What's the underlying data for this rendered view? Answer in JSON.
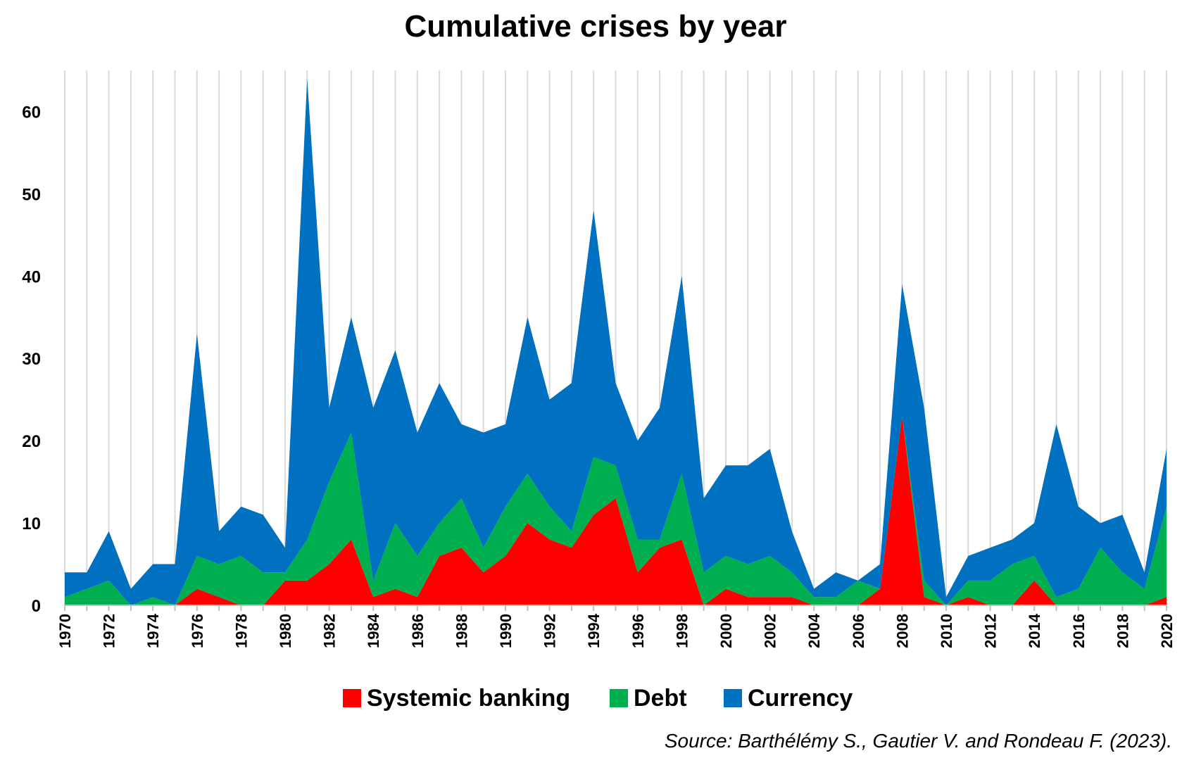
{
  "chart_data": {
    "type": "area",
    "stacked": true,
    "title": "Cumulative crises by year",
    "source": "Source: Barthélémy S., Gautier V. and Rondeau F. (2023).",
    "x": [
      1970,
      1971,
      1972,
      1973,
      1974,
      1975,
      1976,
      1977,
      1978,
      1979,
      1980,
      1981,
      1982,
      1983,
      1984,
      1985,
      1986,
      1987,
      1988,
      1989,
      1990,
      1991,
      1992,
      1993,
      1994,
      1995,
      1996,
      1997,
      1998,
      1999,
      2000,
      2001,
      2002,
      2003,
      2004,
      2005,
      2006,
      2007,
      2008,
      2009,
      2010,
      2011,
      2012,
      2013,
      2014,
      2015,
      2016,
      2017,
      2018,
      2019,
      2020
    ],
    "x_tick_labels": [
      "1970",
      "1972",
      "1974",
      "1976",
      "1978",
      "1980",
      "1982",
      "1984",
      "1986",
      "1988",
      "1990",
      "1992",
      "1994",
      "1996",
      "1998",
      "2000",
      "2002",
      "2004",
      "2006",
      "2008",
      "2010",
      "2012",
      "2014",
      "2016",
      "2018",
      "2020"
    ],
    "y_tick_labels": [
      "0",
      "10",
      "20",
      "30",
      "40",
      "50",
      "60"
    ],
    "ylim": [
      0,
      65
    ],
    "grid": "vertical",
    "legend_position": "bottom",
    "series": [
      {
        "name": "Systemic banking",
        "color": "#ff0000",
        "values": [
          0,
          0,
          0,
          0,
          0,
          0,
          2,
          1,
          0,
          0,
          3,
          3,
          5,
          8,
          1,
          2,
          1,
          6,
          7,
          4,
          6,
          10,
          8,
          7,
          11,
          13,
          4,
          7,
          8,
          0,
          2,
          1,
          1,
          1,
          0,
          0,
          0,
          2,
          23,
          1,
          0,
          1,
          0,
          0,
          3,
          0,
          0,
          0,
          0,
          0,
          1
        ]
      },
      {
        "name": "Debt",
        "color": "#00b050",
        "values": [
          1,
          2,
          3,
          0,
          1,
          0,
          4,
          4,
          6,
          4,
          1,
          5,
          10,
          13,
          2,
          8,
          5,
          4,
          6,
          3,
          6,
          6,
          4,
          2,
          7,
          4,
          4,
          1,
          8,
          4,
          4,
          4,
          5,
          3,
          1,
          1,
          3,
          0,
          0,
          2,
          0,
          2,
          3,
          5,
          3,
          1,
          2,
          7,
          4,
          2,
          11
        ]
      },
      {
        "name": "Currency",
        "color": "#0070c0",
        "values": [
          3,
          2,
          6,
          2,
          4,
          5,
          27,
          4,
          6,
          7,
          3,
          56,
          9,
          14,
          21,
          21,
          15,
          17,
          9,
          14,
          10,
          19,
          13,
          18,
          30,
          10,
          12,
          16,
          24,
          9,
          11,
          12,
          13,
          5,
          1,
          3,
          0,
          3,
          16,
          21,
          1,
          3,
          4,
          3,
          4,
          21,
          10,
          3,
          7,
          2,
          7
        ]
      }
    ]
  }
}
